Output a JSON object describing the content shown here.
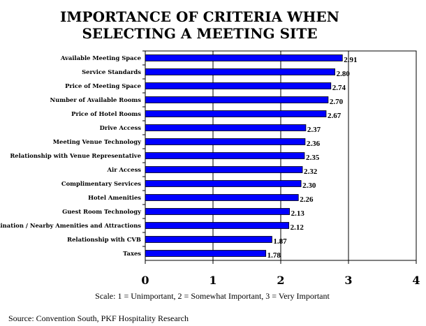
{
  "chart_data": {
    "type": "bar",
    "orientation": "horizontal",
    "title_lines": [
      "IMPORTANCE OF CRITERIA WHEN",
      "SELECTING A MEETING SITE"
    ],
    "categories": [
      "Available Meeting Space",
      "Service Standards",
      "Price of Meeting Space",
      "Number of Available Rooms",
      "Price of Hotel Rooms",
      "Drive Access",
      "Meeting Venue Technology",
      "Relationship with Venue Representative",
      "Air Access",
      "Complimentary Services",
      "Hotel Amenities",
      "Guest Room Technology",
      "Destination / Nearby Amenities and Attractions",
      "Relationship with CVB",
      "Taxes"
    ],
    "values": [
      2.91,
      2.8,
      2.74,
      2.7,
      2.67,
      2.37,
      2.36,
      2.35,
      2.32,
      2.3,
      2.26,
      2.13,
      2.12,
      1.87,
      1.78
    ],
    "value_labels": [
      "2.91",
      "2.80",
      "2.74",
      "2.70",
      "2.67",
      "2.37",
      "2.36",
      "2.35",
      "2.32",
      "2.30",
      "2.26",
      "2.13",
      "2.12",
      "1.87",
      "1.78"
    ],
    "x_ticks": [
      "0",
      "1",
      "2",
      "3",
      "4"
    ],
    "xlim": [
      0,
      4
    ],
    "grid": "vertical",
    "bar_color": "#0000ff",
    "scale_note": "Scale: 1 = Unimportant, 2 = Somewhat Important, 3 = Very Important",
    "source": "Source: Convention South, PKF Hospitality Research"
  }
}
